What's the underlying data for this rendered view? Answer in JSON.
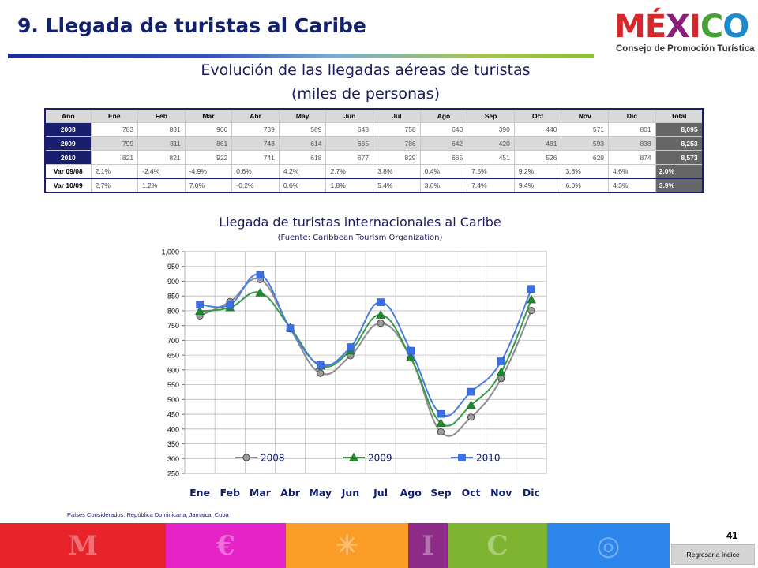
{
  "slide": {
    "title": "9. Llegada de turistas al Caribe",
    "page_number": "41",
    "back_label": "Regresar a índice"
  },
  "logo": {
    "letters": [
      {
        "char": "M",
        "color": "#d9262a"
      },
      {
        "char": "É",
        "color": "#d9262a"
      },
      {
        "char": "X",
        "color": "#8a1f7a"
      },
      {
        "char": "I",
        "color": "#d9262a"
      },
      {
        "char": "C",
        "color": "#46a235"
      },
      {
        "char": "O",
        "color": "#1d8bc9"
      }
    ],
    "subtitle": "Consejo de Promoción Turística"
  },
  "table": {
    "title": "Evolución de las llegadas aéreas de turistas",
    "subtitle": "(miles de personas)",
    "header": [
      "Año",
      "Ene",
      "Feb",
      "Mar",
      "Abr",
      "May",
      "Jun",
      "Jul",
      "Ago",
      "Sep",
      "Oct",
      "Nov",
      "Dic",
      "Total"
    ],
    "rows": [
      {
        "label": "2008",
        "cells": [
          "783",
          "831",
          "906",
          "739",
          "589",
          "648",
          "758",
          "640",
          "390",
          "440",
          "571",
          "801"
        ],
        "total": "8,095"
      },
      {
        "label": "2009",
        "cells": [
          "799",
          "811",
          "861",
          "743",
          "614",
          "665",
          "786",
          "642",
          "420",
          "481",
          "593",
          "838"
        ],
        "total": "8,253"
      },
      {
        "label": "2010",
        "cells": [
          "821",
          "821",
          "922",
          "741",
          "618",
          "677",
          "829",
          "665",
          "451",
          "526",
          "629",
          "874"
        ],
        "total": "8,573"
      },
      {
        "label": "Var 09/08",
        "cells": [
          "2.1%",
          "-2.4%",
          "-4.9%",
          "0.6%",
          "4.2%",
          "2.7%",
          "3.8%",
          "0.4%",
          "7.5%",
          "9.2%",
          "3.8%",
          "4.6%"
        ],
        "total": "2.0%"
      },
      {
        "label": "Var 10/09",
        "cells": [
          "2.7%",
          "1.2%",
          "7.0%",
          "-0.2%",
          "0.6%",
          "1.8%",
          "5.4%",
          "3.6%",
          "7.4%",
          "9.4%",
          "6.0%",
          "4.3%"
        ],
        "total": "3.9%"
      }
    ]
  },
  "chart_data": {
    "type": "line",
    "title": "Llegada de turistas internacionales al Caribe",
    "subtitle": "(Fuente: Caribbean Tourism Organization)",
    "categories": [
      "Ene",
      "Feb",
      "Mar",
      "Abr",
      "May",
      "Jun",
      "Jul",
      "Ago",
      "Sep",
      "Oct",
      "Nov",
      "Dic"
    ],
    "ylim": [
      250,
      1000
    ],
    "yticks": [
      "1,000",
      "950",
      "900",
      "850",
      "800",
      "750",
      "700",
      "650",
      "600",
      "550",
      "500",
      "450",
      "400",
      "350",
      "300",
      "250"
    ],
    "grid": true,
    "legend": "bottom-inside",
    "series": [
      {
        "name": "2008",
        "marker": "circle",
        "color": "#808080",
        "values": [
          783,
          831,
          906,
          739,
          589,
          648,
          758,
          640,
          390,
          440,
          571,
          801
        ]
      },
      {
        "name": "2009",
        "marker": "triangle",
        "color": "#2e8b3a",
        "values": [
          799,
          811,
          861,
          743,
          614,
          665,
          786,
          642,
          420,
          481,
          593,
          838
        ]
      },
      {
        "name": "2010",
        "marker": "square",
        "color": "#3b6fd8",
        "values": [
          821,
          821,
          922,
          741,
          618,
          677,
          829,
          665,
          451,
          526,
          629,
          874
        ]
      }
    ]
  },
  "footnote": "Países Considerados: República Dominicana, Jamaica, Cuba",
  "footer": {
    "blocks": [
      {
        "name": "footer-block-red",
        "color": "#e8232a",
        "glyph": "M"
      },
      {
        "name": "footer-block-magenta",
        "color": "#e523c7",
        "glyph": "€"
      },
      {
        "name": "footer-block-orange",
        "color": "#fb9c26",
        "glyph": "✳"
      },
      {
        "name": "footer-block-purple",
        "color": "#8e2a87",
        "glyph": "I"
      },
      {
        "name": "footer-block-green",
        "color": "#7fb430",
        "glyph": "C"
      },
      {
        "name": "footer-block-blue",
        "color": "#2d86ec",
        "glyph": "◎"
      }
    ]
  }
}
